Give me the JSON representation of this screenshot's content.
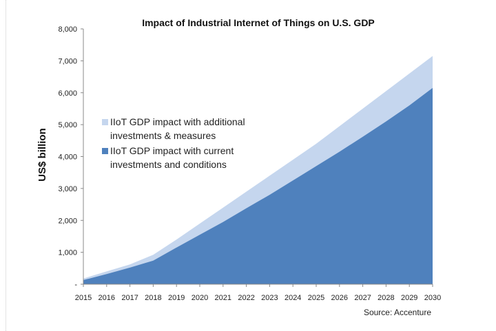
{
  "chart_data": {
    "type": "area",
    "title": "Impact of Industrial Internet of Things on U.S. GDP",
    "ylabel": "US$ billion",
    "source": "Source: Accenture",
    "x": [
      2015,
      2016,
      2017,
      2018,
      2019,
      2020,
      2021,
      2022,
      2023,
      2024,
      2025,
      2026,
      2027,
      2028,
      2029,
      2030
    ],
    "ylim": [
      0,
      8000
    ],
    "yticks": [
      0,
      1000,
      2000,
      3000,
      4000,
      5000,
      6000,
      7000,
      8000
    ],
    "ytick_labels": [
      "-",
      "1,000",
      "2,000",
      "3,000",
      "4,000",
      "5,000",
      "6,000",
      "7,000",
      "8,000"
    ],
    "series": [
      {
        "name": "IIoT GDP impact with additional investments & measures",
        "legend_lines": [
          "IIoT GDP impact with additional",
          "investments & measures"
        ],
        "color": "#c5d6ee",
        "values": [
          180,
          400,
          620,
          920,
          1400,
          1900,
          2400,
          2900,
          3400,
          3900,
          4400,
          4950,
          5500,
          6050,
          6600,
          7150
        ]
      },
      {
        "name": "IIoT GDP impact with current investments and conditions",
        "legend_lines": [
          "IIoT GDP impact with current",
          "investments and conditions"
        ],
        "color": "#4f81bd",
        "values": [
          130,
          320,
          520,
          740,
          1150,
          1550,
          1950,
          2380,
          2800,
          3250,
          3700,
          4150,
          4620,
          5100,
          5600,
          6150
        ]
      }
    ],
    "grid": false,
    "legend_position": "left-middle"
  }
}
